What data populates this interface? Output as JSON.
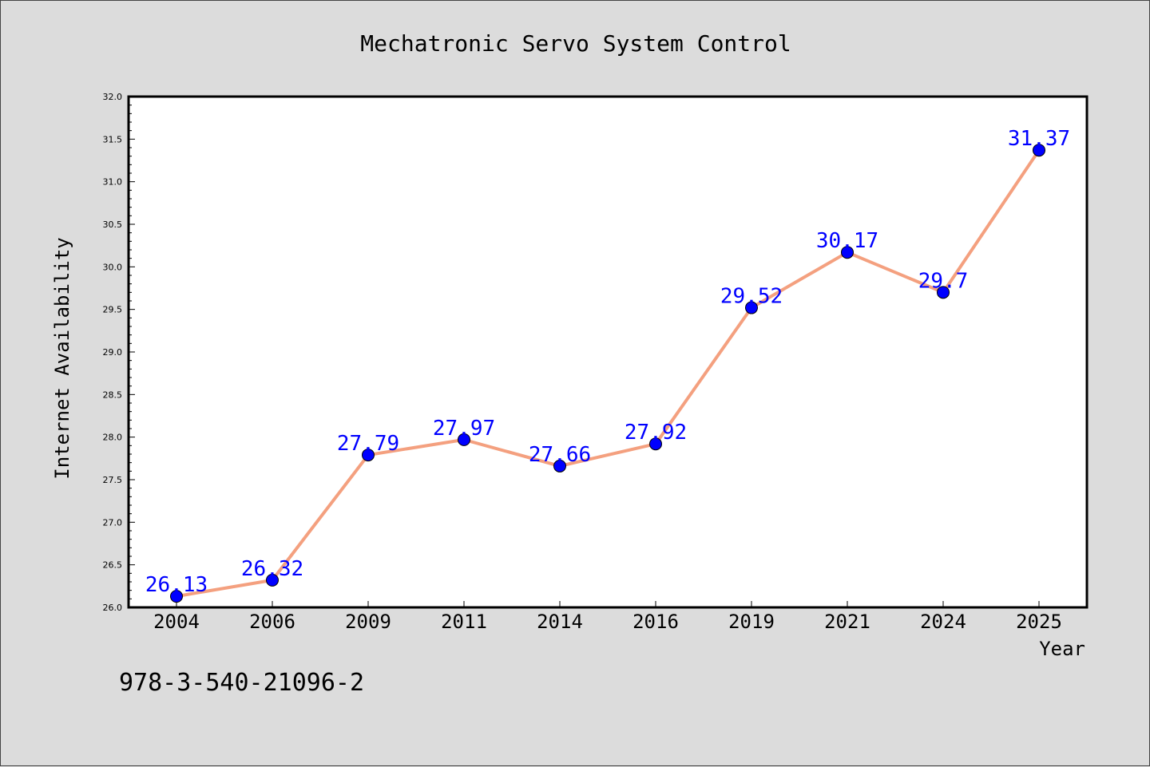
{
  "chart_data": {
    "type": "line",
    "title": "Mechatronic Servo System Control",
    "xlabel": "Year",
    "ylabel": "Internet Availability",
    "categories": [
      "2004",
      "2006",
      "2009",
      "2011",
      "2014",
      "2016",
      "2019",
      "2021",
      "2024",
      "2025"
    ],
    "series": [
      {
        "values": [
          26.13,
          26.32,
          27.79,
          27.97,
          27.66,
          27.92,
          29.52,
          30.17,
          29.7,
          31.37
        ],
        "labels": [
          "26.13",
          "26.32",
          "27.79",
          "27.97",
          "27.66",
          "27.92",
          "29.52",
          "30.17",
          "29.7",
          "31.37"
        ],
        "line_color": "#f4a07f",
        "marker_color": "#0000ff",
        "label_color": "#0000ff"
      }
    ],
    "ylim": [
      26.0,
      32.0
    ],
    "yticks": [
      "26.0",
      "26.5",
      "27.0",
      "27.5",
      "28.0",
      "28.5",
      "29.0",
      "29.5",
      "30.0",
      "30.5",
      "31.0",
      "31.5",
      "32.0"
    ],
    "grid": false
  },
  "footer_text": "978-3-540-21096-2",
  "colors": {
    "background": "#dcdcdc",
    "plot_background": "#ffffff",
    "axis": "#000000"
  }
}
